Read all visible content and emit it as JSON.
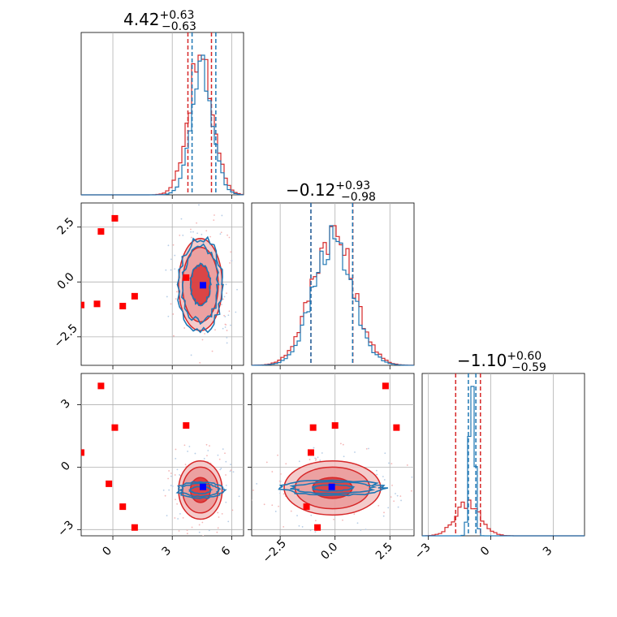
{
  "colors": {
    "red": "#d62728",
    "blue": "#1f77b4",
    "truth": "#ff0000",
    "truth_point": "#0000ff",
    "grid": "#b0b0b0"
  },
  "titles": [
    {
      "value": "4.42",
      "plus": "+0.63",
      "minus": "−0.63"
    },
    {
      "value": "−0.12",
      "plus": "+0.93",
      "minus": "−0.98"
    },
    {
      "value": "−1.10",
      "plus": "+0.60",
      "minus": "−0.59"
    }
  ],
  "chart_data": {
    "type": "corner",
    "parameters": [
      {
        "range": [
          -1.6,
          6.6
        ],
        "ticks": [
          0,
          3,
          6
        ],
        "tick_labels": [
          "0",
          "3",
          "6"
        ]
      },
      {
        "range": [
          -3.8,
          3.6
        ],
        "ticks": [
          -2.5,
          0.0,
          2.5
        ],
        "tick_labels": [
          "−2.5",
          "0.0",
          "2.5"
        ]
      },
      {
        "range": [
          -3.3,
          4.5
        ],
        "ticks": [
          -3,
          0,
          3
        ],
        "tick_labels": [
          "−3",
          "0",
          "3"
        ]
      }
    ],
    "series": [
      {
        "color": "red",
        "marginals": [
          {
            "center": 4.42,
            "sigma": 0.63,
            "quantiles": [
              3.79,
              4.98
            ]
          },
          {
            "center": -0.12,
            "sigma": 0.95,
            "quantiles": [
              -1.1,
              0.81
            ]
          },
          {
            "center": -1.1,
            "sigma": 0.6,
            "quantiles": [
              -1.69,
              -0.5
            ]
          }
        ]
      },
      {
        "color": "blue",
        "marginals": [
          {
            "center": 4.5,
            "sigma": 0.55,
            "quantiles": [
              4.0,
              5.2
            ]
          },
          {
            "center": -0.1,
            "sigma": 0.9,
            "quantiles": [
              -1.1,
              0.8
            ]
          },
          {
            "center": -0.9,
            "sigma": 0.13,
            "quantiles": [
              -1.08,
              -0.72
            ]
          }
        ]
      }
    ],
    "contours": {
      "p1_p0": {
        "center": [
          4.42,
          -0.12
        ],
        "radii": [
          [
            0.5,
            0.9
          ],
          [
            0.9,
            1.7
          ],
          [
            1.1,
            2.1
          ]
        ]
      },
      "p2_p0": {
        "center": [
          4.42,
          -1.1
        ],
        "radii": [
          [
            0.5,
            0.6
          ],
          [
            0.9,
            1.1
          ],
          [
            1.1,
            1.4
          ]
        ]
      },
      "p2_p1": {
        "center": [
          -0.12,
          -1.0
        ],
        "radii": [
          [
            0.9,
            0.5
          ],
          [
            1.7,
            1.0
          ],
          [
            2.2,
            1.3
          ]
        ]
      }
    },
    "truth_points": {
      "p0_p1": [
        [
          -1.6,
          -1.05
        ],
        [
          -0.6,
          2.3
        ],
        [
          0.1,
          2.9
        ],
        [
          -0.8,
          -1.0
        ],
        [
          0.5,
          -1.1
        ],
        [
          1.1,
          -0.65
        ],
        [
          3.7,
          0.2
        ]
      ],
      "p0_p2": [
        [
          -1.6,
          0.7
        ],
        [
          -0.6,
          3.9
        ],
        [
          -0.2,
          -0.8
        ],
        [
          0.1,
          1.9
        ],
        [
          0.5,
          -1.9
        ],
        [
          1.1,
          -2.9
        ],
        [
          3.7,
          2.0
        ]
      ],
      "p1_p2": [
        [
          -1.1,
          0.7
        ],
        [
          -1.0,
          1.9
        ],
        [
          0.0,
          2.0
        ],
        [
          2.3,
          3.9
        ],
        [
          2.8,
          1.9
        ],
        [
          -1.3,
          -1.9
        ],
        [
          -0.8,
          -2.9
        ]
      ]
    },
    "truth_point_blue": [
      4.55,
      -0.15,
      -0.95
    ]
  }
}
